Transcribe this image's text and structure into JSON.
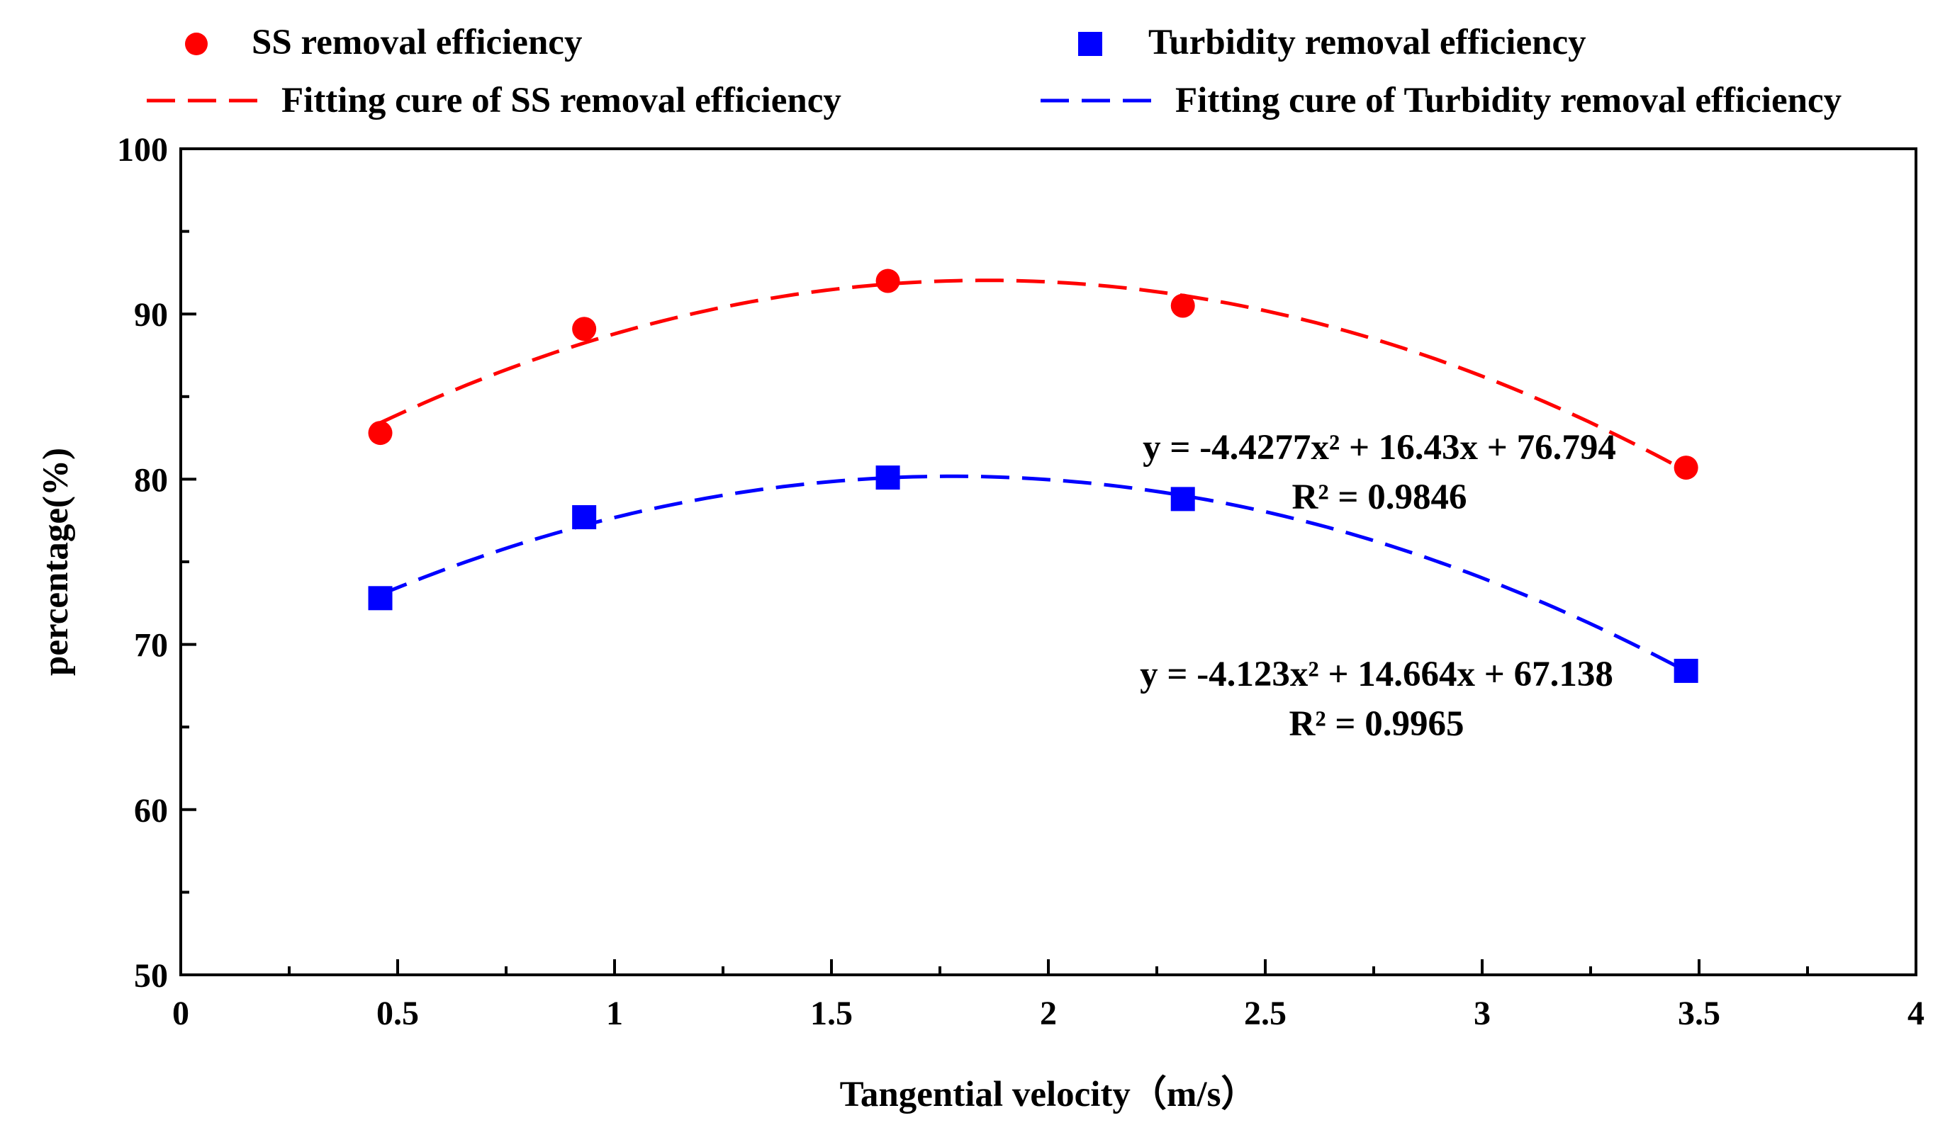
{
  "chart_data": {
    "type": "scatter",
    "title": "",
    "xlabel": "Tangential velocity（m/s）",
    "ylabel": "percentage(%)",
    "xlim": [
      0,
      4
    ],
    "ylim": [
      50,
      100
    ],
    "x_ticks": [
      0,
      0.5,
      1,
      1.5,
      2,
      2.5,
      3,
      3.5,
      4
    ],
    "x_tick_labels": [
      "0",
      "0.5",
      "1",
      "1.5",
      "2",
      "2.5",
      "3",
      "3.5",
      "4"
    ],
    "y_ticks": [
      50,
      60,
      70,
      80,
      90,
      100
    ],
    "y_tick_labels": [
      "50",
      "60",
      "70",
      "80",
      "90",
      "100"
    ],
    "grid": false,
    "legend_position": "top, outside plot",
    "series": [
      {
        "name": "SS removal efficiency",
        "marker": "circle",
        "color": "#ff0000",
        "x": [
          0.46,
          0.93,
          1.63,
          2.31,
          3.47
        ],
        "values": [
          82.8,
          89.1,
          92.0,
          90.5,
          80.7
        ]
      },
      {
        "name": "Turbidity removal efficiency",
        "marker": "square",
        "color": "#0000ff",
        "x": [
          0.46,
          0.93,
          1.63,
          2.31,
          3.47
        ],
        "values": [
          72.8,
          77.7,
          80.1,
          78.8,
          68.4
        ]
      }
    ],
    "fits": [
      {
        "name": "Fitting cure of SS removal efficiency",
        "color": "#ff0000",
        "coefficients": [
          -4.4277,
          16.43,
          76.794
        ],
        "x_range": [
          0.46,
          3.47
        ],
        "equation": "y = -4.4277x² + 16.43x + 76.794",
        "r2": "R² = 0.9846"
      },
      {
        "name": "Fitting cure of Turbidity removal efficiency",
        "color": "#0000ff",
        "coefficients": [
          -4.123,
          14.664,
          67.138
        ],
        "x_range": [
          0.46,
          3.47
        ],
        "equation": "y = -4.123x² + 14.664x + 67.138",
        "r2": "R² = 0.9965"
      }
    ]
  }
}
